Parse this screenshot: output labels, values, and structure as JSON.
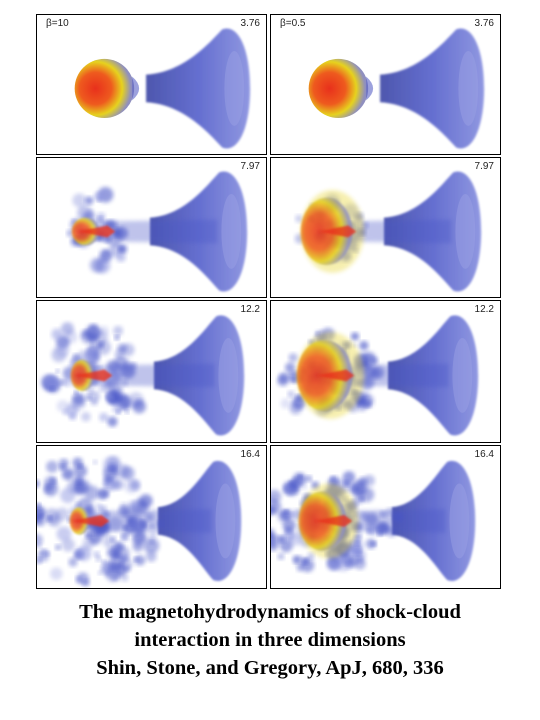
{
  "panels": [
    {
      "row": 0,
      "col": 0,
      "beta_label": "β=10",
      "time_label": "3.76",
      "stage": 0,
      "field": "high"
    },
    {
      "row": 0,
      "col": 1,
      "beta_label": "β=0.5",
      "time_label": "3.76",
      "stage": 0,
      "field": "low"
    },
    {
      "row": 1,
      "col": 0,
      "beta_label": "",
      "time_label": "7.97",
      "stage": 1,
      "field": "high"
    },
    {
      "row": 1,
      "col": 1,
      "beta_label": "",
      "time_label": "7.97",
      "stage": 1,
      "field": "low"
    },
    {
      "row": 2,
      "col": 0,
      "beta_label": "",
      "time_label": "12.2",
      "stage": 2,
      "field": "high"
    },
    {
      "row": 2,
      "col": 1,
      "beta_label": "",
      "time_label": "12.2",
      "stage": 2,
      "field": "low"
    },
    {
      "row": 3,
      "col": 0,
      "beta_label": "",
      "time_label": "16.4",
      "stage": 3,
      "field": "high"
    },
    {
      "row": 3,
      "col": 1,
      "beta_label": "",
      "time_label": "16.4",
      "stage": 3,
      "field": "low"
    }
  ],
  "caption": {
    "line1": "The magnetohydrodynamics of shock-cloud",
    "line2": "interaction in three dimensions",
    "line3": "Shin, Stone, and Gregory, ApJ, 680, 336"
  },
  "colors": {
    "flow_blue": "#4a56c8",
    "flow_blue_dark": "#2f3aa0",
    "core_red": "#e8301c",
    "core_yellow": "#e6d21e"
  }
}
